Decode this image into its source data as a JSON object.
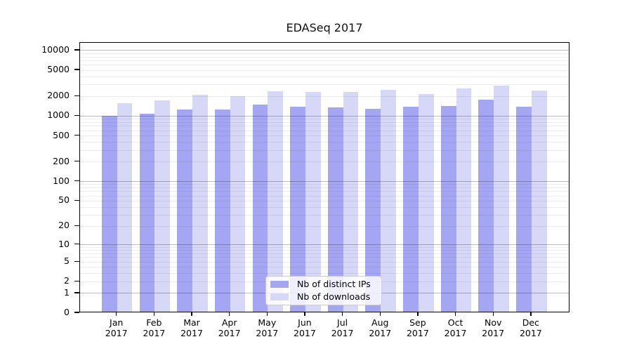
{
  "title": "EDASeq 2017",
  "chart_data": {
    "type": "bar",
    "title": "EDASeq 2017",
    "scale": "log1p",
    "grid": "on",
    "legend_position": "lower center",
    "months": [
      "Jan",
      "Feb",
      "Mar",
      "Apr",
      "May",
      "Jun",
      "Jul",
      "Aug",
      "Sep",
      "Oct",
      "Nov",
      "Dec"
    ],
    "year": "2017",
    "yticks": [
      0,
      1,
      2,
      5,
      10,
      20,
      50,
      100,
      200,
      500,
      1000,
      2000,
      5000,
      10000
    ],
    "ylim": [
      0,
      13100
    ],
    "series": [
      {
        "name": "Nb of distinct IPs",
        "color": "#a5a6f3",
        "values": [
          960,
          1040,
          1200,
          1200,
          1420,
          1330,
          1310,
          1220,
          1330,
          1360,
          1700,
          1330
        ]
      },
      {
        "name": "Nb of downloads",
        "color": "#d7d8f8",
        "values": [
          1500,
          1650,
          2000,
          1920,
          2300,
          2250,
          2230,
          2380,
          2050,
          2520,
          2800,
          2360
        ]
      }
    ]
  },
  "colors": {
    "background": "#ffffff",
    "axis": "#000000",
    "grid_major": "rgba(0,0,0,0.26)",
    "grid_minor": "rgba(0,0,0,0.07)",
    "bar_distinct_ips": "#a5a6f3",
    "bar_downloads": "#d7d8f8",
    "legend_border": "#cccccc"
  }
}
